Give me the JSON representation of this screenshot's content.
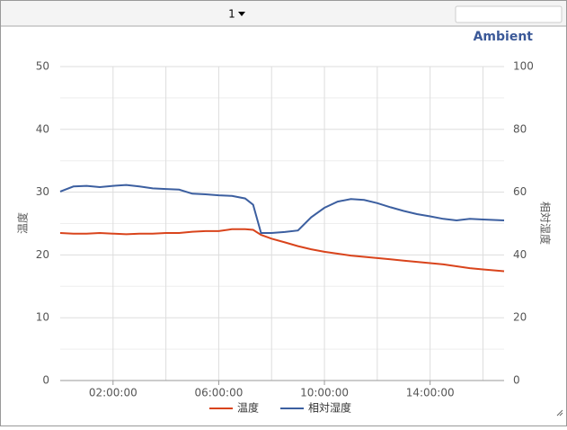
{
  "toolbar": {
    "selector": "1"
  },
  "chart_data": {
    "type": "line",
    "title": "Ambient",
    "y_label": "温度",
    "y2_label": "相対湿度",
    "x": [
      0,
      0.5,
      1,
      1.5,
      2,
      2.5,
      3,
      3.5,
      4,
      4.5,
      5,
      5.5,
      6,
      6.5,
      7,
      7.3,
      7.6,
      8,
      8.5,
      9,
      9.5,
      10,
      10.5,
      11,
      11.5,
      12,
      12.5,
      13,
      13.5,
      14,
      14.5,
      15,
      15.5,
      16,
      16.8
    ],
    "series": [
      {
        "name": "温度",
        "color": "#d9441c",
        "axis": "y",
        "values": [
          23.5,
          23.4,
          23.4,
          23.5,
          23.4,
          23.3,
          23.4,
          23.4,
          23.5,
          23.5,
          23.7,
          23.8,
          23.8,
          24.1,
          24.1,
          24.0,
          23.2,
          22.6,
          22.0,
          21.4,
          20.9,
          20.5,
          20.2,
          19.9,
          19.7,
          19.5,
          19.3,
          19.1,
          18.9,
          18.7,
          18.5,
          18.2,
          17.9,
          17.7,
          17.4
        ]
      },
      {
        "name": "相対湿度",
        "color": "#3c5fa0",
        "axis": "y2",
        "values": [
          60.2,
          61.8,
          62.0,
          61.6,
          62.0,
          62.3,
          61.8,
          61.2,
          61.0,
          60.8,
          59.5,
          59.3,
          59.0,
          58.8,
          58.0,
          56.0,
          47.0,
          47.0,
          47.3,
          47.8,
          52.0,
          55.0,
          57.0,
          57.8,
          57.5,
          56.5,
          55.2,
          54.0,
          53.0,
          52.3,
          51.5,
          51.0,
          51.5,
          51.3,
          51.0
        ]
      }
    ],
    "xlim": [
      0,
      16.8
    ],
    "xticks": [
      {
        "value": 2,
        "label": "02:00:00"
      },
      {
        "value": 6,
        "label": "06:00:00"
      },
      {
        "value": 10,
        "label": "10:00:00"
      },
      {
        "value": 14,
        "label": "14:00:00"
      }
    ],
    "x_minor_grid": [
      4,
      8,
      12,
      16
    ],
    "ylim": [
      0,
      50
    ],
    "yticks": [
      0,
      10,
      20,
      30,
      40,
      50
    ],
    "y_minor_grid": [
      5,
      15,
      25,
      35,
      45
    ],
    "y2lim": [
      0,
      100
    ],
    "y2ticks": [
      0,
      20,
      40,
      60,
      80,
      100
    ],
    "grid": true,
    "legend": "bottom"
  }
}
